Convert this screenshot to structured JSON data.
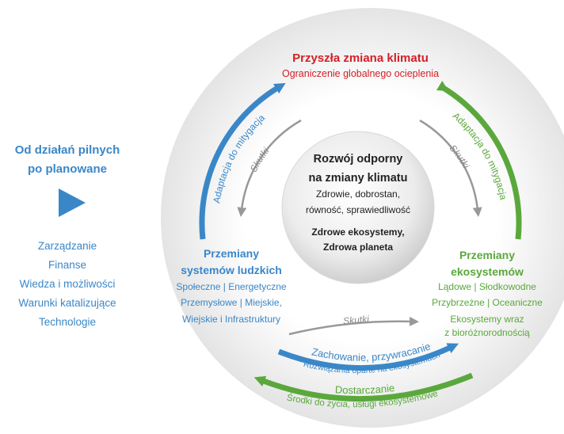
{
  "left_panel": {
    "heading": [
      "Od działań pilnych",
      "po planowane"
    ],
    "items": [
      "Zarządzanie",
      "Finanse",
      "Wiedza i możliwości",
      "Warunki katalizujące",
      "Technologie"
    ]
  },
  "top": {
    "title": "Przyszła zmiana klimatu",
    "subtitle": "Ograniczenie globalnego ocieplenia"
  },
  "center": {
    "title": [
      "Rozwój odporny",
      "na zmiany klimatu"
    ],
    "lines": [
      "Zdrowie, dobrostan,",
      "równość, sprawiedliwość"
    ],
    "lines2": [
      "Zdrowe ekosystemy,",
      "Zdrowa planeta"
    ]
  },
  "human_systems": {
    "title": [
      "Przemiany",
      "systemów ludzkich"
    ],
    "lines": [
      "Społeczne | Energetyczne",
      "Przemysłowe | Miejskie,",
      "Wiejskie i Infrastruktury"
    ]
  },
  "ecosystems": {
    "title": [
      "Przemiany",
      "ekosystemów"
    ],
    "lines": [
      "Lądowe | Słodkowodne",
      "Przybrzeżne | Oceaniczne",
      "Ekosystemy wraz",
      "z bioróżnorodnością"
    ]
  },
  "arcs": {
    "left_outer": "Adaptacja do mitygacja",
    "right_outer": "Adaptacja do mitygacja",
    "left_inner": "Skutki",
    "right_inner": "Skutki",
    "bottom_inner": "Skutki",
    "blue_bottom": [
      "Zachowanie, przywracanie",
      "Rozwiązania oparte na ekosystemach"
    ],
    "green_bottom": [
      "Dostarczanie",
      "Środki do życia, usługi ekosystemowe"
    ]
  }
}
